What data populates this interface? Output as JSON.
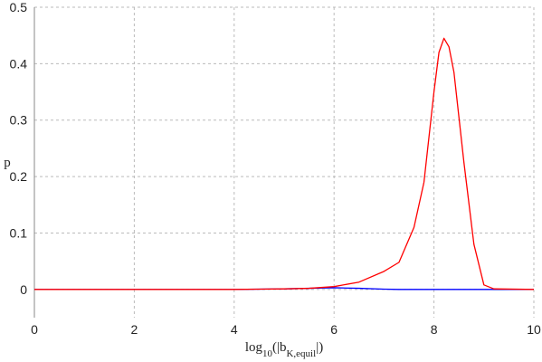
{
  "chart_data": {
    "type": "line",
    "x_label": [
      {
        "text": "log"
      },
      {
        "text": "10",
        "sub": true
      },
      {
        "text": "(|b"
      },
      {
        "text": "K,equil",
        "sub": true
      },
      {
        "text": "|)"
      }
    ],
    "y_label": "p",
    "x": [
      0,
      2,
      4,
      4.5,
      5,
      5.5,
      6,
      6.5,
      7,
      7.3,
      7.6,
      7.8,
      8,
      8.1,
      8.2,
      8.3,
      8.4,
      8.6,
      8.8,
      9,
      9.2,
      10
    ],
    "series": [
      {
        "color": "#0000ff",
        "values": [
          0,
          0,
          0,
          0.0005,
          0.001,
          0.002,
          0.003,
          0.002,
          0.0005,
          0,
          0,
          0,
          0,
          0,
          0,
          0,
          0,
          0,
          0,
          0,
          0,
          0
        ]
      },
      {
        "color": "#ff0000",
        "values": [
          0,
          0,
          0,
          0.0005,
          0.001,
          0.002,
          0.005,
          0.013,
          0.032,
          0.048,
          0.11,
          0.19,
          0.35,
          0.42,
          0.445,
          0.43,
          0.385,
          0.225,
          0.08,
          0.008,
          0.001,
          0
        ]
      }
    ],
    "xlim": [
      0,
      10
    ],
    "ylim": [
      -0.05,
      0.5
    ],
    "xticks": [
      0,
      2,
      4,
      6,
      8,
      10
    ],
    "yticks": [
      0,
      0.1,
      0.2,
      0.3,
      0.4,
      0.5
    ],
    "grid": true
  }
}
